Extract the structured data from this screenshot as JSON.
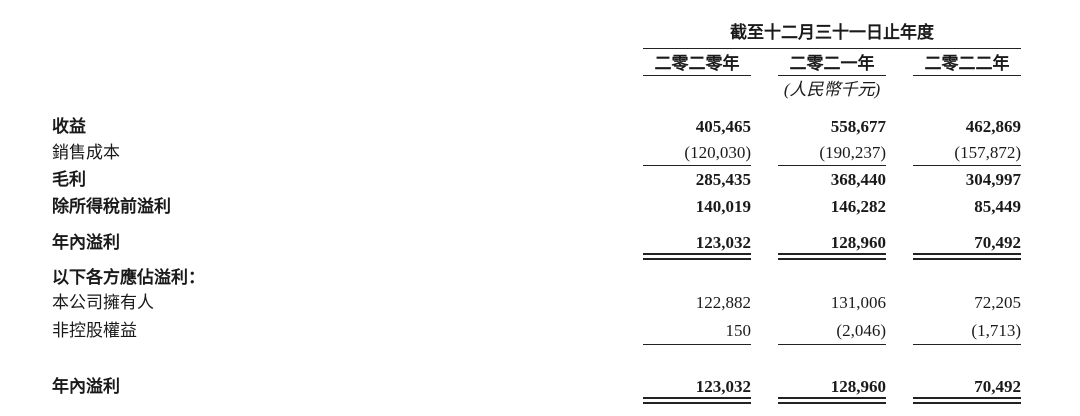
{
  "header": {
    "period": "截至十二月三十一日止年度",
    "years": [
      "二零二零年",
      "二零二一年",
      "二零二二年"
    ],
    "unit": "(人民幣千元)"
  },
  "rows": [
    {
      "label": "收益",
      "bold": true,
      "values": [
        "405,465",
        "558,677",
        "462,869"
      ]
    },
    {
      "label": "銷售成本",
      "bold": false,
      "values": [
        "(120,030)",
        "(190,237)",
        "(157,872)"
      ]
    },
    {
      "label": "毛利",
      "bold": true,
      "values": [
        "285,435",
        "368,440",
        "304,997"
      ]
    },
    {
      "label": "除所得稅前溢利",
      "bold": true,
      "values": [
        "140,019",
        "146,282",
        "85,449"
      ]
    },
    {
      "label": "年內溢利",
      "bold": true,
      "values": [
        "123,032",
        "128,960",
        "70,492"
      ]
    },
    {
      "label": "以下各方應佔溢利：",
      "bold": true,
      "values": []
    },
    {
      "label": "本公司擁有人",
      "bold": false,
      "values": [
        "122,882",
        "131,006",
        "72,205"
      ]
    },
    {
      "label": "非控股權益",
      "bold": false,
      "values": [
        "150",
        "(2,046)",
        "(1,713)"
      ]
    },
    {
      "label": "年內溢利",
      "bold": true,
      "values": [
        "123,032",
        "128,960",
        "70,492"
      ]
    }
  ]
}
